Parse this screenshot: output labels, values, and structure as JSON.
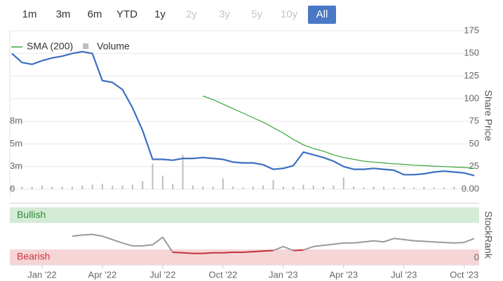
{
  "range_buttons": {
    "labels": [
      "1m",
      "3m",
      "6m",
      "YTD",
      "1y",
      "2y",
      "3y",
      "5y",
      "10y",
      "All"
    ],
    "active": 9,
    "disabled": [
      5,
      6,
      7,
      8
    ]
  },
  "chart_data": [
    {
      "type": "line",
      "y_label": "Share Price",
      "grid": true,
      "ylim": [
        0,
        175
      ],
      "yticks": [
        {
          "value": 0,
          "label": "0.00"
        },
        25,
        50,
        75,
        100,
        125,
        150,
        175
      ],
      "y2lim": [
        0,
        17500000
      ],
      "y2ticks": [
        0,
        {
          "value": 2500000,
          "label": "3m"
        },
        {
          "value": 5000000,
          "label": "5m"
        },
        {
          "value": 7500000,
          "label": "8m"
        }
      ],
      "series": [
        {
          "color": "#3b6fc2",
          "values": [
            150,
            140,
            138,
            142,
            145,
            147,
            150,
            152,
            150,
            120,
            118,
            110,
            90,
            65,
            33,
            33,
            32,
            34,
            34,
            35,
            34,
            33,
            30,
            29,
            29,
            27,
            22,
            23,
            26,
            41,
            38,
            35,
            31,
            25,
            22,
            22,
            23,
            22,
            21,
            16,
            16,
            17,
            19,
            20,
            19,
            18,
            15
          ]
        },
        {
          "name": "SMA (200)",
          "color": "#3aa53a",
          "values": [
            null,
            null,
            null,
            null,
            null,
            null,
            null,
            null,
            null,
            null,
            null,
            null,
            null,
            null,
            null,
            null,
            null,
            null,
            null,
            103,
            99,
            94,
            89,
            84,
            79,
            74,
            68,
            62,
            55,
            49,
            45,
            42,
            38,
            35,
            33,
            31,
            30,
            29,
            28,
            27.5,
            26.5,
            26,
            25.5,
            25,
            24.5,
            24,
            23
          ]
        },
        {
          "name": "Volume",
          "type": "bar",
          "axis": "y2",
          "color": "#bdbdbd",
          "values": [
            400000,
            300000,
            300000,
            400000,
            300000,
            300000,
            300000,
            400000,
            500000,
            600000,
            400000,
            400000,
            500000,
            900000,
            2800000,
            1500000,
            600000,
            3800000,
            400000,
            300000,
            300000,
            1200000,
            300000,
            200000,
            300000,
            400000,
            1000000,
            300000,
            300000,
            500000,
            400000,
            300000,
            400000,
            1300000,
            300000,
            200000,
            300000,
            300000,
            200000,
            300000,
            200000,
            300000,
            200000,
            200000,
            300000,
            200000,
            300000
          ]
        }
      ]
    },
    {
      "type": "line",
      "y_label": "StockRank",
      "categories": [
        null,
        null,
        null,
        "Jan '22",
        null,
        null,
        null,
        null,
        null,
        "Apr '22",
        null,
        null,
        null,
        null,
        null,
        "Jul '22",
        null,
        null,
        null,
        null,
        null,
        "Oct '22",
        null,
        null,
        null,
        null,
        null,
        "Jan '23",
        null,
        null,
        null,
        null,
        null,
        "Apr '23",
        null,
        null,
        null,
        null,
        null,
        "Jul '23",
        null,
        null,
        null,
        null,
        null,
        "Oct '23",
        null
      ],
      "ylim": [
        0,
        100
      ],
      "yticks": [
        0
      ],
      "zones": [
        {
          "label": "Bullish",
          "range": [
            73,
            100
          ],
          "color": "#d4ebd6",
          "text_color": "#2e8b3a"
        },
        {
          "label": "Bearish",
          "range": [
            0,
            27
          ],
          "color": "#f6d5d7",
          "text_color": "#d0343f",
          "line_color": "#c2323b"
        }
      ],
      "series": [
        {
          "color": "#9a9a9a",
          "values": [
            null,
            null,
            null,
            null,
            null,
            null,
            50,
            52,
            53,
            50,
            44,
            38,
            33,
            33,
            35,
            48,
            22,
            21,
            20,
            20,
            21,
            21,
            22,
            22,
            23,
            24,
            25,
            32,
            25,
            26,
            32,
            34,
            36,
            38,
            38,
            40,
            42,
            40,
            46,
            44,
            42,
            41,
            40,
            39,
            38,
            39,
            46
          ]
        }
      ]
    }
  ]
}
